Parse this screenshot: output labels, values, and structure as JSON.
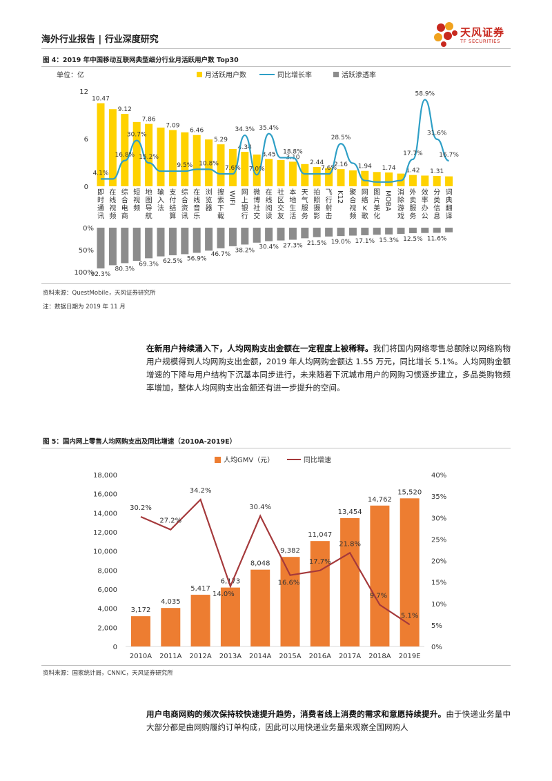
{
  "header": {
    "title": "海外行业报告 | 行业深度研究",
    "logo_cn": "天风证券",
    "logo_en": "TF SECURITIES"
  },
  "figure4": {
    "title": "图 4：2019 年中国移动互联网典型细分行业月活跃用户数 Top30",
    "unit": "单位：亿",
    "legend": [
      "月活跃用户数",
      "同比增长率",
      "活跃渗透率"
    ],
    "source": "资料来源：QuestMobile，天风证券研究所",
    "note": "注：数据日期为 2019 年 11 月",
    "colors": {
      "bar": "#FFD200",
      "line": "#2E9FC6",
      "neg": "#8C8C8C"
    },
    "chart_data": {
      "type": "bar",
      "categories": [
        "即时通讯",
        "在线视频",
        "综合电商",
        "短视频",
        "地图导航",
        "输入法",
        "支付结算",
        "综合资讯",
        "在线音乐",
        "浏览器",
        "搜索下载",
        "WIFI",
        "网上银行",
        "微博社交",
        "在线阅读",
        "社区交友",
        "本地生活",
        "天气服务",
        "拍照摄影",
        "飞行射击",
        "K12",
        "聚合视频",
        "网络K歌",
        "图片美化",
        "MOBA",
        "消除游戏",
        "外卖服务",
        "效率办公",
        "分类信息",
        "词典翻译"
      ],
      "mau_values": [
        10.47,
        9.72,
        9.12,
        8.1,
        7.86,
        7.4,
        7.09,
        6.8,
        6.46,
        5.9,
        5.29,
        4.7,
        4.34,
        4.0,
        3.45,
        3.3,
        3.1,
        2.8,
        2.44,
        2.3,
        2.16,
        2.0,
        1.94,
        1.8,
        1.74,
        1.6,
        1.42,
        1.35,
        1.31,
        1.25
      ],
      "mau_labels": [
        "10.47",
        "",
        "9.12",
        "",
        "7.86",
        "",
        "7.09",
        "",
        "6.46",
        "",
        "5.29",
        "",
        "4.34",
        "",
        "3.45",
        "",
        "3.10",
        "",
        "2.44",
        "",
        "2.16",
        "",
        "1.94",
        "",
        "1.74",
        "",
        "1.42",
        "",
        "1.31",
        ""
      ],
      "growth_values": [
        4.1,
        4.1,
        16.8,
        30.7,
        15.2,
        9.5,
        9.5,
        9.5,
        10.8,
        10.8,
        7.6,
        7.6,
        34.3,
        7.0,
        35.4,
        18.8,
        18.8,
        7.6,
        7.6,
        7.6,
        28.5,
        15.0,
        3.0,
        2.0,
        2.0,
        3.0,
        17.7,
        58.9,
        31.6,
        16.7
      ],
      "growth_labels": [
        {
          "i": 0,
          "t": "4.1%"
        },
        {
          "i": 2,
          "t": "16.8%"
        },
        {
          "i": 3,
          "t": "30.7%"
        },
        {
          "i": 4,
          "t": "15.2%"
        },
        {
          "i": 7,
          "t": "9.5%"
        },
        {
          "i": 9,
          "t": "10.8%"
        },
        {
          "i": 11,
          "t": "7.6%"
        },
        {
          "i": 12,
          "t": "34.3%"
        },
        {
          "i": 13,
          "t": "7.0%"
        },
        {
          "i": 14,
          "t": "35.4%"
        },
        {
          "i": 16,
          "t": "18.8%"
        },
        {
          "i": 19,
          "t": "7.6%"
        },
        {
          "i": 20,
          "t": "28.5%"
        },
        {
          "i": 26,
          "t": "17.7%"
        },
        {
          "i": 27,
          "t": "58.9%"
        },
        {
          "i": 28,
          "t": "31.6%"
        },
        {
          "i": 29,
          "t": "16.7%"
        }
      ],
      "penetration_values": [
        92.3,
        85.0,
        80.3,
        75.0,
        69.3,
        65.0,
        62.5,
        60.0,
        56.9,
        52.0,
        46.7,
        42.0,
        38.2,
        34.0,
        30.4,
        29.0,
        27.3,
        24.0,
        21.5,
        20.0,
        19.0,
        18.0,
        17.1,
        16.0,
        15.3,
        14.0,
        12.5,
        12.0,
        11.6,
        10.5
      ],
      "penetration_labels": [
        "92.3%",
        "",
        "80.3%",
        "",
        "69.3%",
        "",
        "62.5%",
        "",
        "56.9%",
        "",
        "46.7%",
        "",
        "38.2%",
        "",
        "30.4%",
        "",
        "27.3%",
        "",
        "21.5%",
        "",
        "19.0%",
        "",
        "17.1%",
        "",
        "15.3%",
        "",
        "12.5%",
        "",
        "11.6%",
        ""
      ],
      "y_ticks": [
        "12",
        "6",
        "0"
      ],
      "y_neg_ticks": [
        "0%",
        "50%",
        "100%"
      ],
      "ylim": [
        0,
        12
      ]
    }
  },
  "para1": {
    "bold": "在新用户持续涌入下，人均网购支出金额在一定程度上被稀释。",
    "text": "我们将国内网络零售总额除以网络购物用户规模得到人均网购支出金额，2019 年人均网购金额达 1.55 万元，同比增长 5.1%。人均网购金额增速的下降与用户结构下沉基本同步进行，未来随着下沉城市用户的网购习惯逐步建立，多品类购物频率增加，整体人均网购支出金额还有进一步提升的空间。"
  },
  "figure5": {
    "title": "图 5：国内网上零售人均网购支出及同比增速（2010A-2019E）",
    "source": "资料来源：国家统计局，CNNIC，天风证券研究所",
    "colors": {
      "bar": "#ED7D31",
      "line": "#A5393B"
    },
    "chart_data": {
      "type": "bar",
      "categories": [
        "2010A",
        "2011A",
        "2012A",
        "2013A",
        "2014A",
        "2015A",
        "2016A",
        "2017A",
        "2018A",
        "2019E"
      ],
      "series": [
        {
          "name": "人均GMV（元）",
          "values": [
            3172,
            4035,
            5417,
            6173,
            8048,
            9382,
            11047,
            13454,
            14762,
            15520
          ],
          "labels": [
            "3,172",
            "4,035",
            "5,417",
            "6,173",
            "8,048",
            "9,382",
            "11,047",
            "13,454",
            "14,762",
            "15,520"
          ]
        },
        {
          "name": "同比增速",
          "values": [
            30.2,
            27.2,
            34.2,
            14.0,
            30.4,
            16.6,
            17.7,
            21.8,
            9.7,
            5.1
          ],
          "labels": [
            "30.2%",
            "27.2%",
            "34.2%",
            "14.0%",
            "30.4%",
            "16.6%",
            "17.7%",
            "21.8%",
            "9.7%",
            "5.1%"
          ]
        }
      ],
      "y_ticks": [
        "0",
        "2,000",
        "4,000",
        "6,000",
        "8,000",
        "10,000",
        "12,000",
        "14,000",
        "16,000",
        "18,000"
      ],
      "y2_ticks": [
        "0%",
        "5%",
        "10%",
        "15%",
        "20%",
        "25%",
        "30%",
        "35%",
        "40%"
      ],
      "ylim": [
        0,
        18000
      ],
      "y2lim": [
        0,
        40
      ]
    }
  },
  "para2": {
    "bold": "用户电商网购的频次保持较快速提升趋势，消费者线上消费的需求和意愿持续提升。",
    "text": "由于快递业务量中大部分都是由网购履约订单构成，因此可以用快递业务量来观察全国网购人"
  }
}
